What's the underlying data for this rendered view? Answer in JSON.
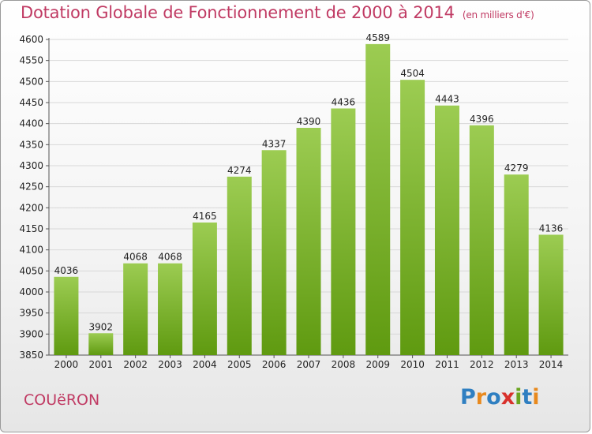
{
  "title": "Dotation Globale de Fonctionnement de 2000 à 2014",
  "unit_note": "(en milliers d'€)",
  "city": "COUëRON",
  "logo": {
    "text": "Proxiti",
    "letters": [
      {
        "ch": "P",
        "color": "#2f7fc1"
      },
      {
        "ch": "r",
        "color": "#e8891d"
      },
      {
        "ch": "o",
        "color": "#2f7fc1"
      },
      {
        "ch": "x",
        "color": "#d8312c"
      },
      {
        "ch": "i",
        "color": "#6aa51f"
      },
      {
        "ch": "t",
        "color": "#2f7fc1"
      },
      {
        "ch": "i",
        "color": "#e8891d"
      }
    ]
  },
  "colors": {
    "title": "#c03a63",
    "bar_top": "#9ccc52",
    "bar_bottom": "#5f9a10",
    "grid": "#d8d8d8",
    "axis": "#555555",
    "text": "#222222"
  },
  "chart_data": {
    "type": "bar",
    "title": "Dotation Globale de Fonctionnement de 2000 à 2014",
    "xlabel": "",
    "ylabel": "",
    "categories": [
      "2000",
      "2001",
      "2002",
      "2003",
      "2004",
      "2005",
      "2006",
      "2007",
      "2008",
      "2009",
      "2010",
      "2011",
      "2012",
      "2013",
      "2014"
    ],
    "values": [
      4036,
      3902,
      4068,
      4068,
      4165,
      4274,
      4337,
      4390,
      4436,
      4589,
      4504,
      4443,
      4396,
      4279,
      4136
    ],
    "ylim": [
      3850,
      4600
    ],
    "yticks": [
      3850,
      3900,
      3950,
      4000,
      4050,
      4100,
      4150,
      4200,
      4250,
      4300,
      4350,
      4400,
      4450,
      4500,
      4550,
      4600
    ],
    "grid": true,
    "legend": "none",
    "data_labels": true
  }
}
